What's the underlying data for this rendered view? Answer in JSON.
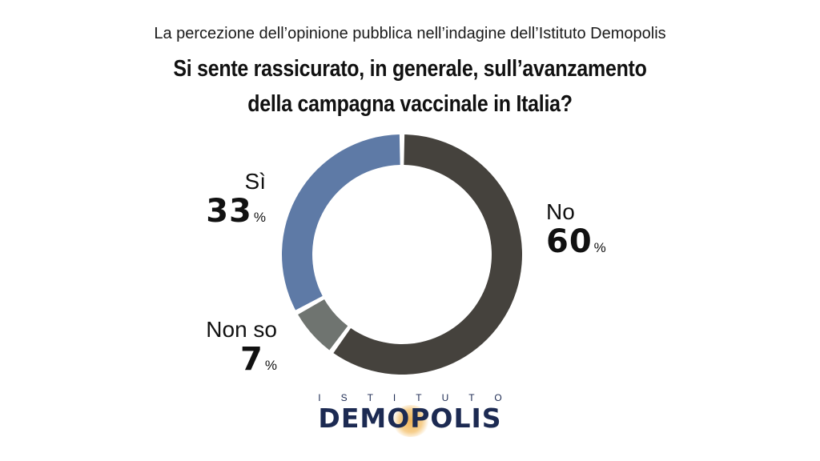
{
  "header": {
    "subtitle": "La percezione dell’opinione pubblica nell’indagine dell’Istituto Demopolis",
    "title_line1": "Si sente rassicurato, in generale, sull’avanzamento",
    "title_line2": "della campagna vaccinale in Italia?"
  },
  "chart_data": {
    "type": "pie",
    "variant": "donut",
    "title": "Si sente rassicurato, in generale, sull’avanzamento della campagna vaccinale in Italia?",
    "subtitle": "La percezione dell’opinione pubblica nell’indagine dell’Istituto Demopolis",
    "unit": "%",
    "slices": [
      {
        "label": "No",
        "value": 60,
        "color": "#45423d"
      },
      {
        "label": "Non so",
        "value": 7,
        "color": "#6f7470"
      },
      {
        "label": "Sì",
        "value": 33,
        "color": "#5e7aa6"
      }
    ]
  },
  "labels": {
    "si": {
      "label": "Sì",
      "value": "33",
      "unit": "%"
    },
    "no": {
      "label": "No",
      "value": "60",
      "unit": "%"
    },
    "non_so": {
      "label": "Non so",
      "value": "7",
      "unit": "%"
    }
  },
  "logo": {
    "top": "ISTITUTO",
    "main": "DEMOPOLIS"
  }
}
